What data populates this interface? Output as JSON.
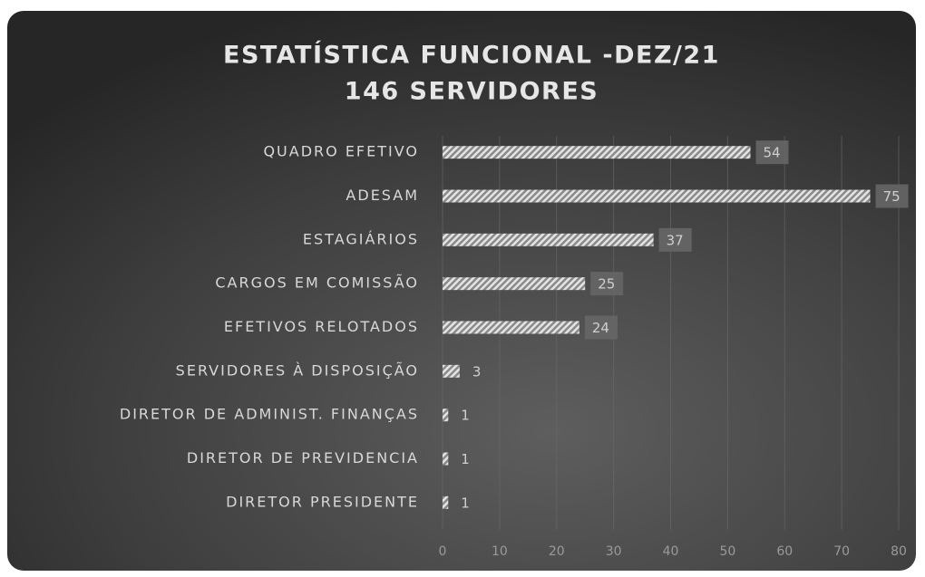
{
  "chart_data": {
    "type": "bar",
    "orientation": "horizontal",
    "title": "ESTATÍSTICA FUNCIONAL -DEZ/21",
    "subtitle": "146 SERVIDORES",
    "categories": [
      "QUADRO EFETIVO",
      "ADESAM",
      "ESTAGIÁRIOS",
      "CARGOS EM COMISSÃO",
      "EFETIVOS RELOTADOS",
      "SERVIDORES À DISPOSIÇÃO",
      "DIRETOR DE ADMINIST. FINANÇAS",
      "DIRETOR DE PREVIDENCIA",
      "DIRETOR PRESIDENTE"
    ],
    "values": [
      54,
      75,
      37,
      25,
      24,
      3,
      1,
      1,
      1
    ],
    "color": "#cfcfcf",
    "xlim": [
      0,
      80
    ],
    "xticks": [
      0,
      10,
      20,
      30,
      40,
      50,
      60,
      70,
      80
    ],
    "grid": true
  }
}
